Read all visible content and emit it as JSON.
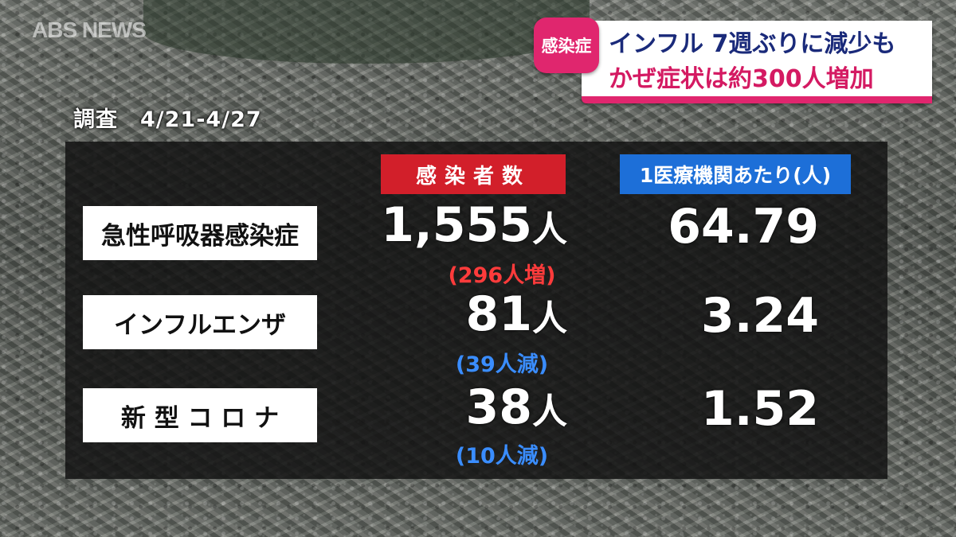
{
  "watermark": "ABS NEWS",
  "headline": {
    "tag": "感染症",
    "line1": "インフル 7週ぶりに減少も",
    "line2": "かぜ症状は約300人増加"
  },
  "survey_period": "調査　4/21-4/27",
  "columns": {
    "infected": "感染者数",
    "per_facility": "1医療機関あたり(人)"
  },
  "rows": [
    {
      "label": "急性呼吸器感染症",
      "count": "1,555",
      "unit": "人",
      "change": "(296人増)",
      "change_direction": "increase",
      "per_facility": "64.79"
    },
    {
      "label": "インフルエンザ",
      "count": "81",
      "unit": "人",
      "change": "(39人減)",
      "change_direction": "decrease",
      "per_facility": "3.24"
    },
    {
      "label": "新 型 コ ロ ナ",
      "count": "38",
      "unit": "人",
      "change": "(10人減)",
      "change_direction": "decrease",
      "per_facility": "1.52"
    }
  ],
  "colors": {
    "headline_accent": "#e0266e",
    "headline_text": "#1a2a7a",
    "infected_header": "#d21f2a",
    "per_facility_header": "#1d6fd8",
    "increase": "#ff3b3b",
    "decrease": "#3a8dff"
  }
}
